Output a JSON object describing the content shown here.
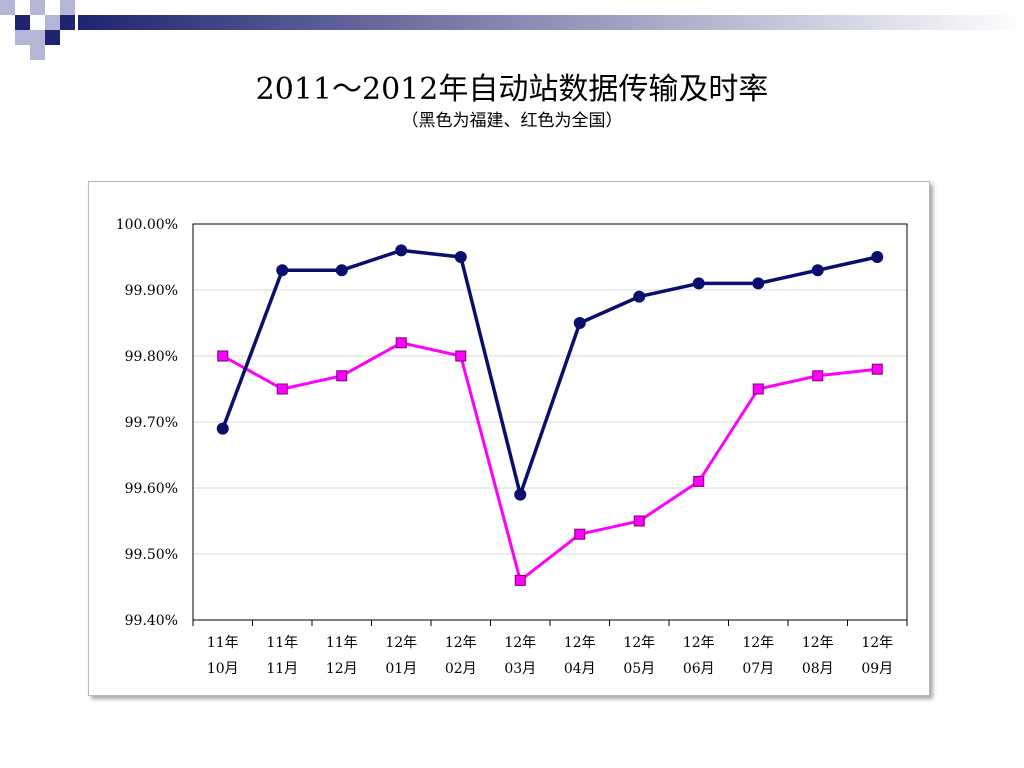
{
  "slide": {
    "title": "2011～2012年自动站数据传输及时率",
    "subtitle": "（黑色为福建、红色为全国）"
  },
  "colors": {
    "fujian": "#0a0f6e",
    "national": "#ff00ff",
    "grid": "#d9d9d9",
    "deco_dark": "#1f2470",
    "deco_light": "#b3b6d6"
  },
  "chart_data": {
    "type": "line",
    "categories": [
      [
        "11年",
        "10月"
      ],
      [
        "11年",
        "11月"
      ],
      [
        "11年",
        "12月"
      ],
      [
        "12年",
        "01月"
      ],
      [
        "12年",
        "02月"
      ],
      [
        "12年",
        "03月"
      ],
      [
        "12年",
        "04月"
      ],
      [
        "12年",
        "05月"
      ],
      [
        "12年",
        "06月"
      ],
      [
        "12年",
        "07月"
      ],
      [
        "12年",
        "08月"
      ],
      [
        "12年",
        "09月"
      ]
    ],
    "series": [
      {
        "key": "fujian",
        "marker": "circle",
        "values": [
          99.69,
          99.93,
          99.93,
          99.96,
          99.95,
          99.59,
          99.85,
          99.89,
          99.91,
          99.91,
          99.93,
          99.95
        ]
      },
      {
        "key": "national",
        "marker": "square",
        "values": [
          99.8,
          99.75,
          99.77,
          99.82,
          99.8,
          99.46,
          99.53,
          99.55,
          99.61,
          99.75,
          99.77,
          99.78
        ]
      }
    ],
    "ylim": [
      99.4,
      100.0
    ],
    "yticks": [
      100.0,
      99.9,
      99.8,
      99.7,
      99.6,
      99.5,
      99.4
    ],
    "ytick_labels": [
      "100.00%",
      "99.90%",
      "99.80%",
      "99.70%",
      "99.60%",
      "99.50%",
      "99.40%"
    ],
    "grid": true,
    "legend": "none"
  }
}
